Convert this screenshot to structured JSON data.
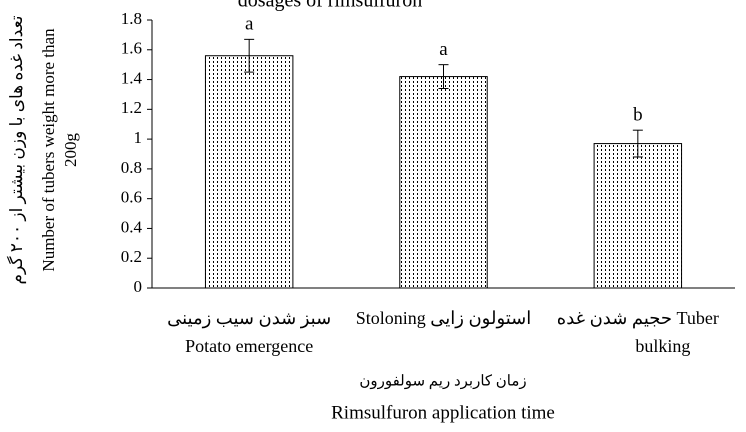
{
  "chart_data": {
    "type": "bar",
    "title": "dosages of rimsulfuron",
    "categories": [
      [
        "سبز شدن سیب زمینی",
        "Potato emergence"
      ],
      [
        "Stoloning استولون زایی"
      ],
      [
        "حجیم شدن غده Tuber",
        "bulking"
      ]
    ],
    "values": [
      1.56,
      1.42,
      0.97
    ],
    "errors": [
      0.11,
      0.08,
      0.09
    ],
    "letters": [
      "a",
      "a",
      "b"
    ],
    "color": "#000000",
    "ylim": [
      0,
      1.8
    ],
    "yticks": [
      0,
      0.2,
      0.4,
      0.6,
      0.8,
      1,
      1.2,
      1.4,
      1.6,
      1.8
    ],
    "y_label": [
      "تعداد غده های با وزن بیشتر از ۲۰۰ گرم",
      "Number of tubers weight more than",
      "200g"
    ],
    "x_label": [
      "زمان کاربرد ریم سولفورون",
      "Rimsulfuron application time"
    ]
  }
}
